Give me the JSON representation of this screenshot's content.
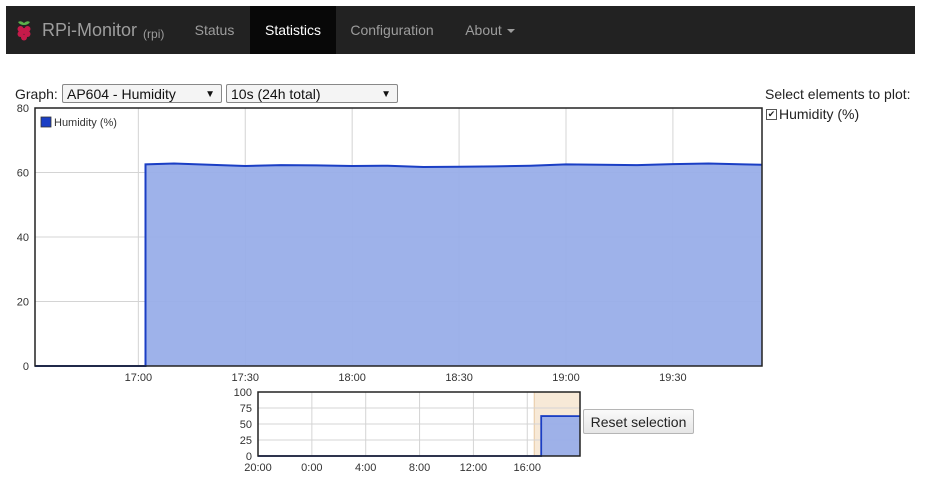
{
  "navbar": {
    "brand_title": "RPi-Monitor",
    "brand_host": "(rpi)",
    "items": [
      {
        "label": "Status",
        "active": false
      },
      {
        "label": "Statistics",
        "active": true
      },
      {
        "label": "Configuration",
        "active": false
      },
      {
        "label": "About",
        "active": false
      }
    ]
  },
  "controls": {
    "graph_label": "Graph:",
    "graph_select": "AP604 - Humidity",
    "period_select": "10s (24h total)",
    "select_elements_label": "Select elements to plot:",
    "element_checkbox_label": "Humidity (%)",
    "element_checked": true,
    "reset_button": "Reset selection"
  },
  "colors": {
    "series": "#1a3ec4",
    "fill": "#99aee9",
    "navbar": "#222222",
    "active_nav": "#080808",
    "selection": "#f7e9d7"
  },
  "chart_data": [
    {
      "type": "area",
      "legend_position": "top-left",
      "grid": true,
      "x_ticks": [
        "17:00",
        "17:30",
        "18:00",
        "18:30",
        "19:00",
        "19:30"
      ],
      "y_ticks": [
        "0",
        "20",
        "40",
        "60",
        "80"
      ],
      "xlim": [
        "16:31",
        "19:55"
      ],
      "ylim": [
        0,
        80
      ],
      "series": [
        {
          "name": "Humidity (%)",
          "x": [
            "16:31",
            "17:02",
            "17:02",
            "17:10",
            "17:20",
            "17:30",
            "17:40",
            "17:50",
            "18:00",
            "18:10",
            "18:20",
            "18:30",
            "18:40",
            "18:50",
            "19:00",
            "19:10",
            "19:20",
            "19:30",
            "19:40",
            "19:50",
            "19:55"
          ],
          "values": [
            0,
            0,
            62.5,
            62.8,
            62.4,
            62.0,
            62.3,
            62.2,
            62.0,
            62.1,
            61.7,
            61.8,
            61.9,
            62.1,
            62.5,
            62.4,
            62.3,
            62.6,
            62.8,
            62.5,
            62.4
          ]
        }
      ]
    },
    {
      "type": "area",
      "grid": true,
      "x_ticks": [
        "20:00",
        "0:00",
        "4:00",
        "8:00",
        "12:00",
        "16:00"
      ],
      "y_ticks": [
        "0",
        "25",
        "50",
        "75",
        "100"
      ],
      "xlim": [
        "20:00",
        "19:55"
      ],
      "ylim": [
        0,
        100
      ],
      "selection": [
        "16:31",
        "19:55"
      ],
      "series": [
        {
          "x": [
            "20:00",
            "17:02",
            "17:02",
            "19:55"
          ],
          "values": [
            0,
            0,
            62.5,
            62.4
          ]
        }
      ]
    }
  ]
}
